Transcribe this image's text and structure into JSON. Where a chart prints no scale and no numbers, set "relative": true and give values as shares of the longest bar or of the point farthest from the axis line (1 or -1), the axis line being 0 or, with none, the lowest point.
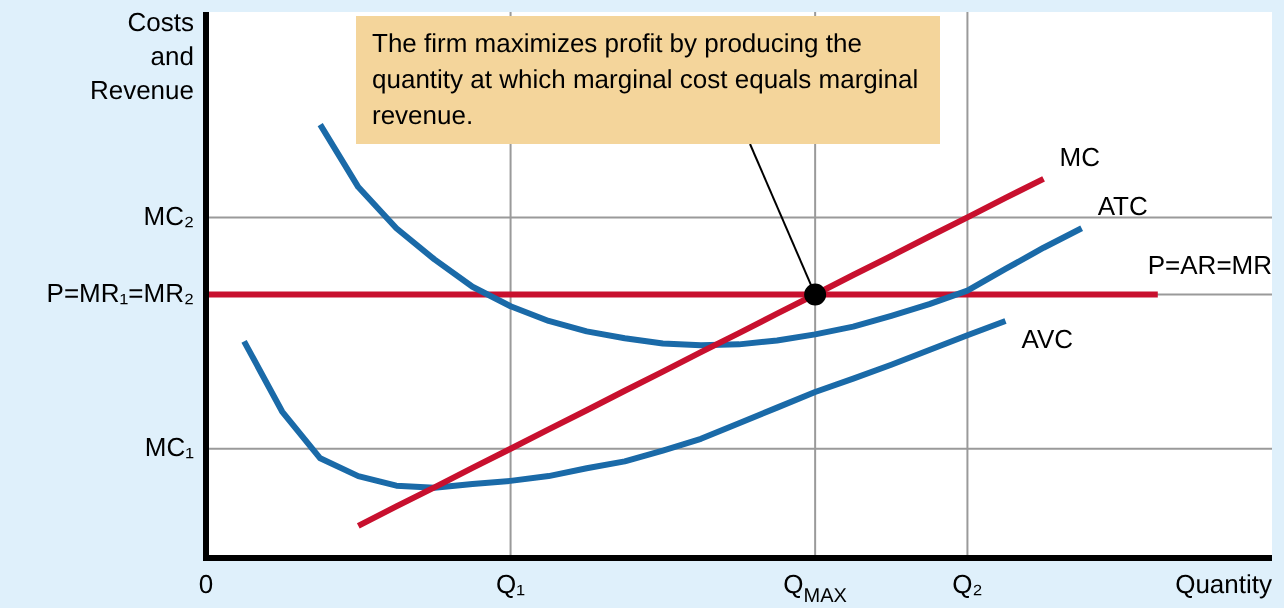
{
  "chart_data": {
    "type": "line",
    "relative": true,
    "xlabel": "Quantity",
    "ylabel": "Costs\nand\nRevenue",
    "categories": [
      "0",
      null,
      null,
      null,
      null,
      null,
      null,
      null,
      "Q₁",
      null,
      null,
      null,
      null,
      null,
      null,
      null,
      "Q$_{MAX}$",
      null,
      null,
      null,
      "Q₂",
      null,
      null,
      null,
      null,
      null,
      null,
      null,
      null
    ],
    "legend": false,
    "marker": "none",
    "line_style": "solid",
    "series": [
      {
        "name": "MC",
        "color": "#c8102e",
        "values": [
          null,
          null,
          null,
          null,
          0.074,
          0.119,
          0.163,
          0.208,
          0.252,
          0.297,
          0.341,
          0.386,
          0.43,
          0.475,
          0.519,
          0.564,
          0.608,
          0.653,
          0.697,
          0.742,
          0.786,
          0.831,
          0.875,
          null,
          null,
          null,
          null,
          null,
          null
        ]
      },
      {
        "name": "ATC",
        "color": "#1a6aa8",
        "values": [
          null,
          null,
          null,
          1.0,
          0.856,
          0.761,
          0.689,
          0.626,
          0.581,
          0.547,
          0.523,
          0.507,
          0.495,
          0.491,
          0.493,
          0.502,
          0.516,
          0.534,
          0.559,
          0.586,
          0.617,
          0.667,
          0.716,
          0.761,
          null,
          null,
          null,
          null,
          null
        ]
      },
      {
        "name": "P=AR=MR",
        "color": "#c8102e",
        "values": [
          0.608,
          0.608,
          0.608,
          0.608,
          0.608,
          0.608,
          0.608,
          0.608,
          0.608,
          0.608,
          0.608,
          0.608,
          0.608,
          0.608,
          0.608,
          0.608,
          0.608,
          0.608,
          0.608,
          0.608,
          0.608,
          0.608,
          0.608,
          0.608,
          0.608,
          0.608,
          null,
          null,
          null
        ]
      },
      {
        "name": "AVC",
        "color": "#1a6aa8",
        "values": [
          null,
          0.5,
          0.338,
          0.23,
          0.189,
          0.167,
          0.162,
          0.171,
          0.178,
          0.189,
          0.207,
          0.223,
          0.248,
          0.275,
          0.311,
          0.347,
          0.383,
          0.414,
          0.446,
          0.48,
          0.514,
          0.547,
          null,
          null,
          null,
          null,
          null,
          null,
          null
        ]
      },
      {
        "type": "scatter",
        "marker": "circle",
        "color": "#000000",
        "x": [
          "Q$_{MAX}$"
        ],
        "values": [
          0.608
        ]
      }
    ],
    "ref_lines": [
      {
        "axis": "y",
        "value": 0.786,
        "label": "MC₂",
        "color": "#9a9a9a"
      },
      {
        "axis": "y",
        "value": 0.608,
        "label": "P=MR₁=MR₂",
        "color": "#9a9a9a"
      },
      {
        "axis": "y",
        "value": 0.252,
        "label": "MC₁",
        "color": "#9a9a9a"
      },
      {
        "axis": "x",
        "value": "Q₁",
        "color": "#9a9a9a"
      },
      {
        "axis": "x",
        "value": "Q$_{MAX}$",
        "color": "#9a9a9a"
      },
      {
        "axis": "x",
        "value": "Q₂",
        "color": "#9a9a9a"
      }
    ],
    "annotations": [
      {
        "text": "The firm maximizes profit by producing the quantity at which marginal cost equals marginal revenue.",
        "x": "Q$_{MAX}$",
        "y": 0.608
      }
    ]
  }
}
